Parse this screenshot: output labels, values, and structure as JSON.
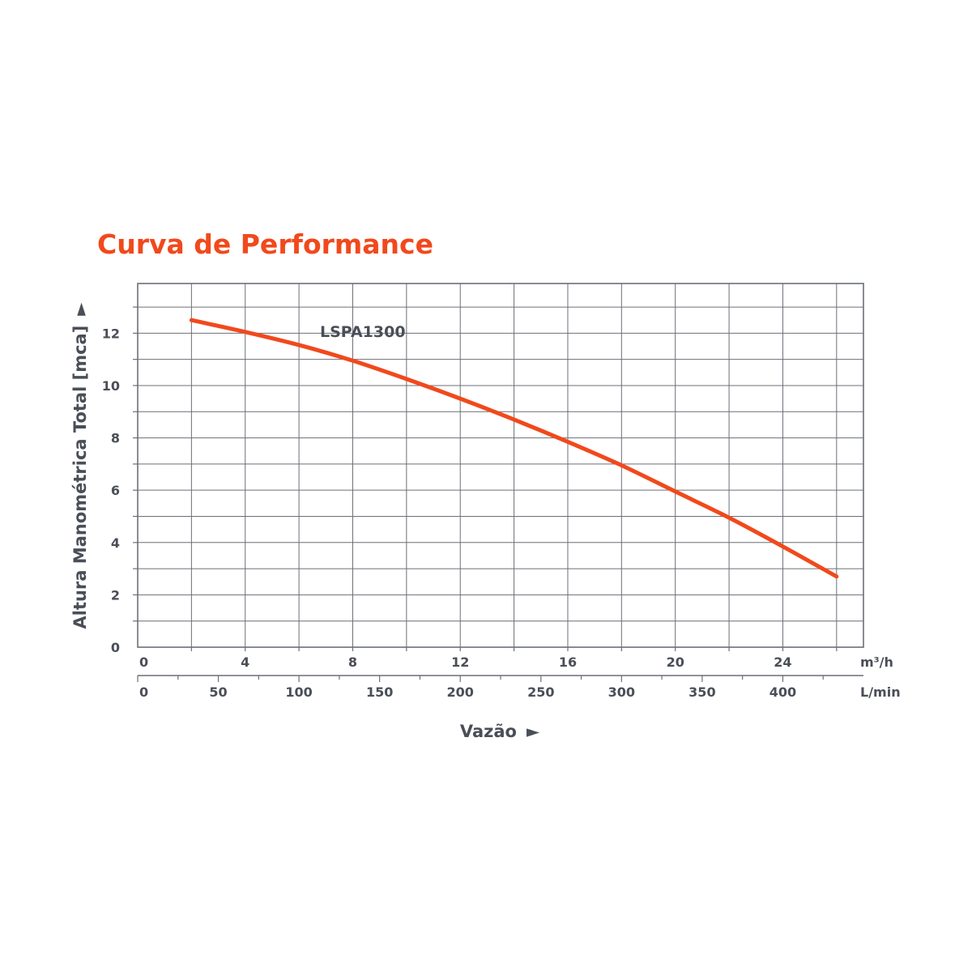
{
  "colors": {
    "accent": "#f1491c",
    "text": "#4a4e57",
    "grid": "#6b6f77"
  },
  "chart_data": {
    "type": "line",
    "title": "Curva de Performance",
    "ylabel": "Altura Manométrica Total [mca]",
    "ylabel_arrow": "►",
    "xlabel": "Vazão",
    "xlabel_arrow": "►",
    "x_unit_primary": "m³/h",
    "x_unit_secondary": "L/min",
    "xlim": [
      0,
      27
    ],
    "ylim": [
      0,
      13.9
    ],
    "grid": true,
    "x_ticks_primary": [
      0,
      4,
      8,
      12,
      16,
      20,
      24
    ],
    "x_ticks_secondary": [
      0,
      50,
      100,
      150,
      200,
      250,
      300,
      350,
      400
    ],
    "y_ticks": [
      0,
      2,
      4,
      6,
      8,
      10,
      12
    ],
    "series": [
      {
        "name": "LSPA1300",
        "x": [
          2,
          4,
          6,
          8,
          10,
          12,
          14,
          16,
          18,
          20,
          22,
          24,
          26
        ],
        "y": [
          12.5,
          12.05,
          11.55,
          10.95,
          10.25,
          9.5,
          8.7,
          7.85,
          6.95,
          5.95,
          4.95,
          3.85,
          2.7
        ]
      }
    ]
  }
}
